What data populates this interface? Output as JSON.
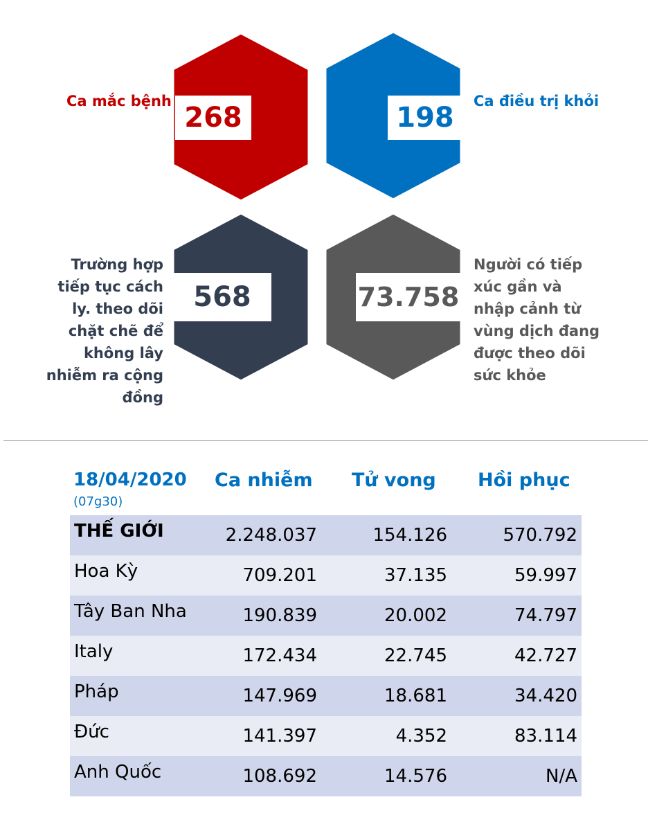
{
  "stats": {
    "cases": {
      "value": "268",
      "label": "Ca mắc bệnh",
      "color": "#c00000"
    },
    "recovered": {
      "value": "198",
      "label": "Ca điều trị khỏi",
      "color": "#0070c0"
    },
    "isolation": {
      "value": "568",
      "label_lines": [
        "Trường hợp",
        "tiếp tục cách",
        "ly. theo dõi",
        "chặt chẽ để",
        "không lây",
        "nhiễm ra cộng",
        "đồng"
      ],
      "color": "#333f50"
    },
    "monitored": {
      "value": "73.758",
      "label_lines": [
        "Người có tiếp",
        "xúc gần và",
        "nhập cảnh từ",
        "vùng dịch đang",
        "được theo dõi",
        "sức khỏe"
      ],
      "color": "#595959"
    }
  },
  "table": {
    "date": "18/04/2020",
    "time": "(07g30)",
    "headers": [
      "Ca nhiễm",
      "Tử vong",
      "Hồi phục"
    ],
    "rows": [
      {
        "name": "THẾ GIỚI",
        "infected": "2.248.037",
        "deaths": "154.126",
        "recovered": "570.792"
      },
      {
        "name": "Hoa Kỳ",
        "infected": "709.201",
        "deaths": "37.135",
        "recovered": "59.997"
      },
      {
        "name": "Tây Ban Nha",
        "infected": "190.839",
        "deaths": "20.002",
        "recovered": "74.797"
      },
      {
        "name": "Italy",
        "infected": "172.434",
        "deaths": "22.745",
        "recovered": "42.727"
      },
      {
        "name": "Pháp",
        "infected": "147.969",
        "deaths": "18.681",
        "recovered": "34.420"
      },
      {
        "name": "Đức",
        "infected": "141.397",
        "deaths": "4.352",
        "recovered": "83.114"
      },
      {
        "name": "Anh Quốc",
        "infected": "108.692",
        "deaths": "14.576",
        "recovered": "N/A"
      }
    ]
  }
}
